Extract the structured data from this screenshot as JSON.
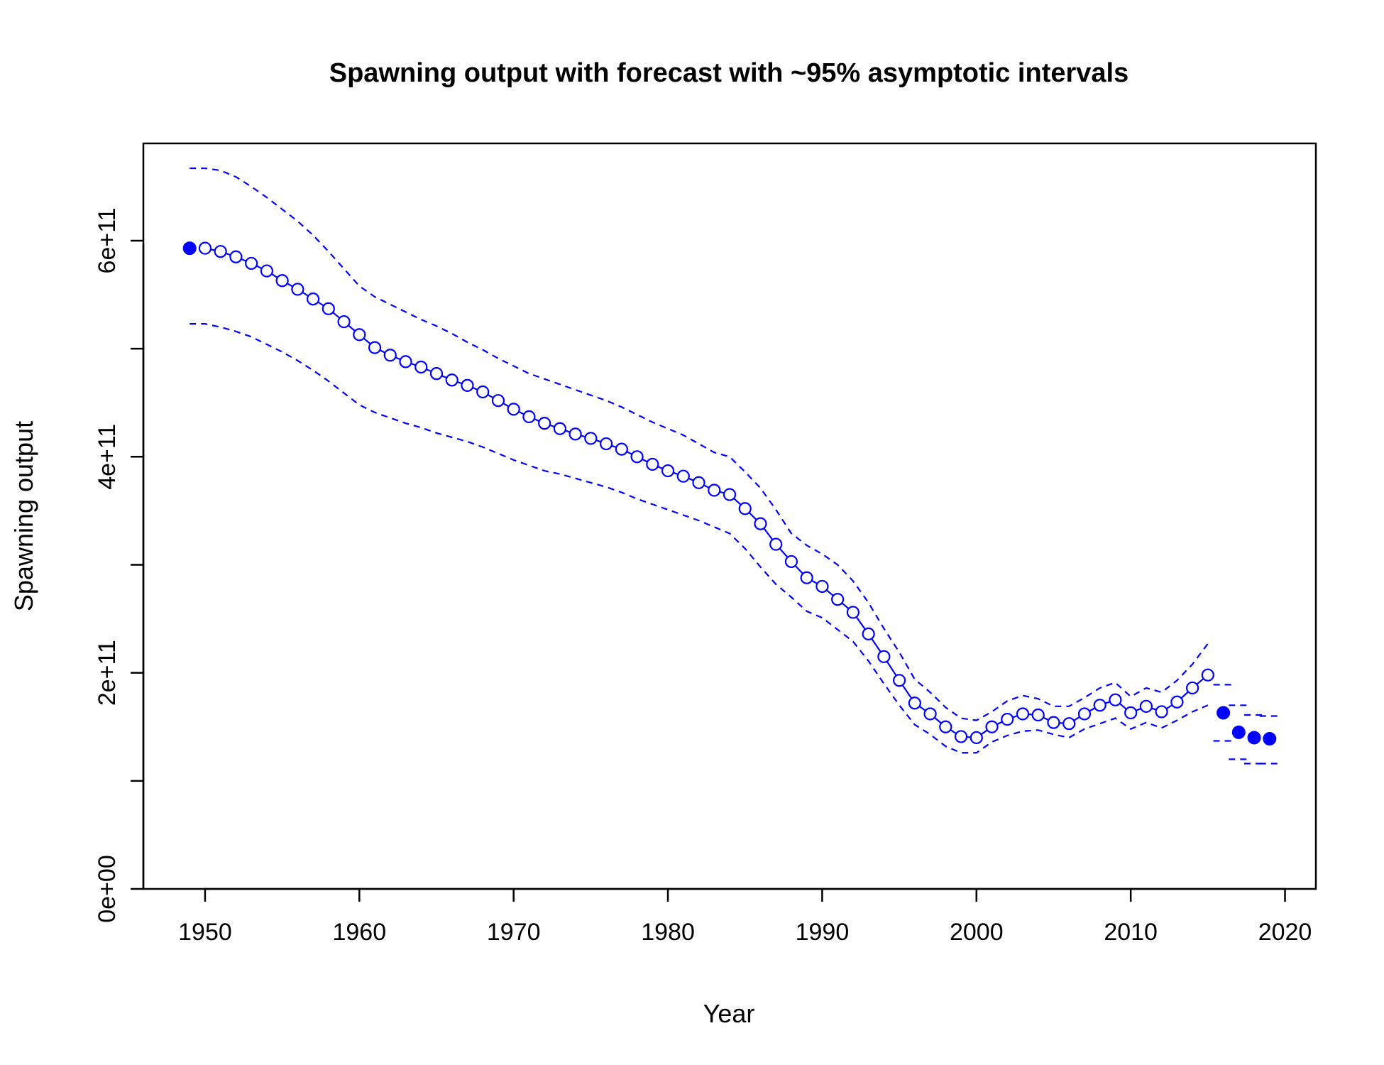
{
  "chart_data": {
    "type": "line",
    "title": "Spawning output with forecast with ~95% asymptotic intervals",
    "xlabel": "Year",
    "ylabel": "Spawning output",
    "xlim": [
      1946,
      2022
    ],
    "ylim": [
      0,
      690000000000.0
    ],
    "x_ticks": [
      1950,
      1960,
      1970,
      1980,
      1990,
      2000,
      2010,
      2020
    ],
    "x_tick_labels": [
      "1950",
      "1960",
      "1970",
      "1980",
      "1990",
      "2000",
      "2010",
      "2020"
    ],
    "y_ticks": [
      0,
      100000000000.0,
      200000000000.0,
      300000000000.0,
      400000000000.0,
      500000000000.0,
      600000000000.0
    ],
    "y_tick_labels": [
      "0e+00",
      "",
      "2e+11",
      "",
      "4e+11",
      "",
      "6e+11"
    ],
    "grid": false,
    "color": "#0000ff",
    "virgin": {
      "x": 1949,
      "y": 593000000000.0,
      "lower": 523000000000.0,
      "upper": 667000000000.0
    },
    "series": [
      {
        "x": [
          1950,
          1951,
          1952,
          1953,
          1954,
          1955,
          1956,
          1957,
          1958,
          1959,
          1960,
          1961,
          1962,
          1963,
          1964,
          1965,
          1966,
          1967,
          1968,
          1969,
          1970,
          1971,
          1972,
          1973,
          1974,
          1975,
          1976,
          1977,
          1978,
          1979,
          1980,
          1981,
          1982,
          1983,
          1984,
          1985,
          1986,
          1987,
          1988,
          1989,
          1990,
          1991,
          1992,
          1993,
          1994,
          1995,
          1996,
          1997,
          1998,
          1999,
          2000,
          2001,
          2002,
          2003,
          2004,
          2005,
          2006,
          2007,
          2008,
          2009,
          2010,
          2011,
          2012,
          2013,
          2014,
          2015
        ],
        "y": [
          593000000000.0,
          590000000000.0,
          585000000000.0,
          579000000000.0,
          572000000000.0,
          563000000000.0,
          555000000000.0,
          546000000000.0,
          537000000000.0,
          525000000000.0,
          513000000000.0,
          501000000000.0,
          494000000000.0,
          488000000000.0,
          483000000000.0,
          477000000000.0,
          471000000000.0,
          466000000000.0,
          460000000000.0,
          452000000000.0,
          444000000000.0,
          437000000000.0,
          431000000000.0,
          426000000000.0,
          421000000000.0,
          417000000000.0,
          412000000000.0,
          407000000000.0,
          400000000000.0,
          393000000000.0,
          387000000000.0,
          382000000000.0,
          376000000000.0,
          369000000000.0,
          365000000000.0,
          352000000000.0,
          338000000000.0,
          319000000000.0,
          303000000000.0,
          288000000000.0,
          280000000000.0,
          268000000000.0,
          256000000000.0,
          236000000000.0,
          215000000000.0,
          193000000000.0,
          172000000000.0,
          162000000000.0,
          150000000000.0,
          141000000000.0,
          140000000000.0,
          150000000000.0,
          157000000000.0,
          162000000000.0,
          161000000000.0,
          154000000000.0,
          153000000000.0,
          162000000000.0,
          170000000000.0,
          175000000000.0,
          163000000000.0,
          169000000000.0,
          164000000000.0,
          173000000000.0,
          186000000000.0,
          198000000000.0
        ],
        "lower": [
          523000000000.0,
          520000000000.0,
          516000000000.0,
          511000000000.0,
          504000000000.0,
          497000000000.0,
          489000000000.0,
          480000000000.0,
          470000000000.0,
          459000000000.0,
          448000000000.0,
          441000000000.0,
          436000000000.0,
          431000000000.0,
          427000000000.0,
          422000000000.0,
          418000000000.0,
          414000000000.0,
          409000000000.0,
          403000000000.0,
          397000000000.0,
          392000000000.0,
          387000000000.0,
          384000000000.0,
          380000000000.0,
          376000000000.0,
          372000000000.0,
          367000000000.0,
          361000000000.0,
          356000000000.0,
          351000000000.0,
          346000000000.0,
          341000000000.0,
          335000000000.0,
          329000000000.0,
          315000000000.0,
          298000000000.0,
          282000000000.0,
          270000000000.0,
          257000000000.0,
          251000000000.0,
          240000000000.0,
          229000000000.0,
          211000000000.0,
          190000000000.0,
          170000000000.0,
          152000000000.0,
          143000000000.0,
          132000000000.0,
          126000000000.0,
          126000000000.0,
          136000000000.0,
          142000000000.0,
          146000000000.0,
          147000000000.0,
          143000000000.0,
          140000000000.0,
          148000000000.0,
          153000000000.0,
          158000000000.0,
          148000000000.0,
          154000000000.0,
          149000000000.0,
          156000000000.0,
          164000000000.0,
          170000000000.0
        ],
        "upper": [
          667000000000.0,
          665000000000.0,
          659000000000.0,
          650000000000.0,
          640000000000.0,
          629000000000.0,
          618000000000.0,
          605000000000.0,
          590000000000.0,
          574000000000.0,
          558000000000.0,
          548000000000.0,
          541000000000.0,
          534000000000.0,
          527000000000.0,
          521000000000.0,
          514000000000.0,
          506000000000.0,
          499000000000.0,
          491000000000.0,
          484000000000.0,
          477000000000.0,
          472000000000.0,
          467000000000.0,
          462000000000.0,
          457000000000.0,
          452000000000.0,
          446000000000.0,
          439000000000.0,
          432000000000.0,
          426000000000.0,
          420000000000.0,
          412000000000.0,
          404000000000.0,
          400000000000.0,
          386000000000.0,
          371000000000.0,
          351000000000.0,
          329000000000.0,
          318000000000.0,
          310000000000.0,
          300000000000.0,
          285000000000.0,
          265000000000.0,
          241000000000.0,
          219000000000.0,
          194000000000.0,
          182000000000.0,
          168000000000.0,
          158000000000.0,
          156000000000.0,
          164000000000.0,
          174000000000.0,
          179000000000.0,
          176000000000.0,
          169000000000.0,
          169000000000.0,
          177000000000.0,
          186000000000.0,
          191000000000.0,
          178000000000.0,
          186000000000.0,
          182000000000.0,
          193000000000.0,
          208000000000.0,
          227000000000.0
        ]
      }
    ],
    "forecast": {
      "x": [
        2016,
        2017,
        2018,
        2019
      ],
      "y": [
        163000000000.0,
        145000000000.0,
        140000000000.0,
        139000000000.0
      ],
      "lower": [
        137000000000.0,
        120000000000.0,
        116000000000.0,
        116000000000.0
      ],
      "upper": [
        189000000000.0,
        170000000000.0,
        161000000000.0,
        160000000000.0
      ]
    }
  }
}
